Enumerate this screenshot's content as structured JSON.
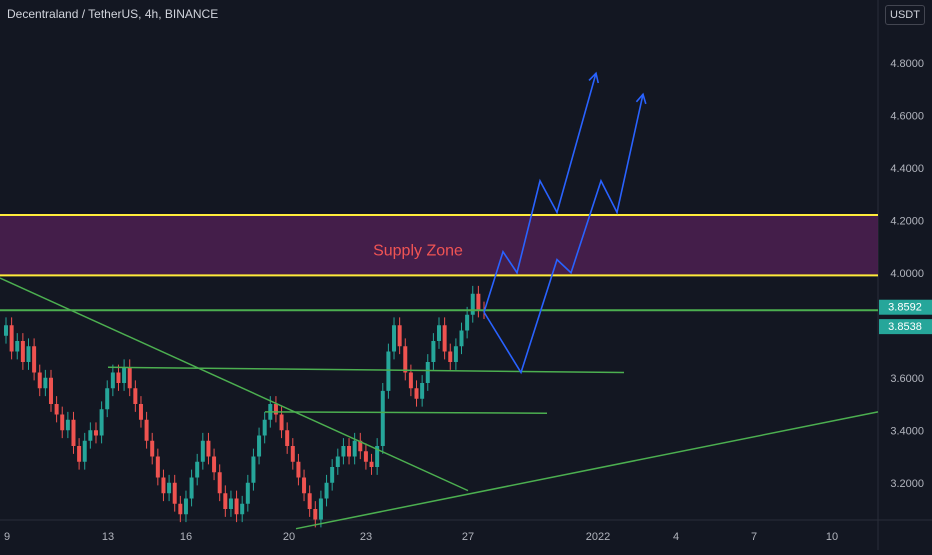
{
  "header": {
    "title": "Decentraland / TetherUS, 4h, BINANCE",
    "currency": "USDT"
  },
  "colors": {
    "background": "#131722",
    "up": "#26a69a",
    "down": "#ef5350",
    "yellow_line": "#ffeb3b",
    "green_line": "#4caf50",
    "projection": "#2962ff",
    "supply_zone_fill": "#4a1f4f",
    "supply_zone_text": "#f05454",
    "axis_text": "#b2b5be"
  },
  "chart_data": {
    "type": "candlestick",
    "title": "Decentraland / TetherUS, 4h, BINANCE",
    "ylim": [
      3.02,
      4.94
    ],
    "yticks": [
      "3.2000",
      "3.4000",
      "3.6000",
      "3.8000",
      "4.0000",
      "4.2000",
      "4.4000",
      "4.6000",
      "4.8000"
    ],
    "xticks": [
      "9",
      "13",
      "16",
      "20",
      "23",
      "27",
      "2022",
      "4",
      "7",
      "10"
    ],
    "price_labels": [
      {
        "value": 3.8592,
        "text": "3.8592",
        "color": "#26a69a"
      },
      {
        "value": 3.8538,
        "text": "3.8538",
        "color": "#26a69a"
      }
    ],
    "annotations": {
      "supply_zone_label": "Supply Zone",
      "supply_zone": [
        3.99,
        4.22
      ],
      "horizontal_levels": [
        4.22,
        3.99,
        3.857
      ],
      "support_levels": [
        {
          "start": "13",
          "end": "31",
          "y_start": 3.64,
          "y_end": 3.62
        },
        {
          "start": "19.5",
          "end": "28.9",
          "y_start": 3.47,
          "y_end": 3.465
        }
      ],
      "descending_trendline": {
        "start": "9",
        "end": "25",
        "y_start": 3.98,
        "y_end": 3.17
      },
      "ascending_trendline": {
        "start": "20.2",
        "end": "11.5",
        "y_start": 3.03,
        "y_end": 3.47
      },
      "projection_paths": [
        [
          [
            3.85,
            3.62,
            4.05,
            4.0,
            4.35,
            4.23,
            4.76
          ]
        ],
        [
          [
            3.85,
            3.62,
            4.05,
            4.0,
            4.35,
            4.23,
            4.68
          ]
        ]
      ]
    },
    "candles_summary": "Price ranges roughly 3.03 to 3.97; last close 3.8538"
  }
}
